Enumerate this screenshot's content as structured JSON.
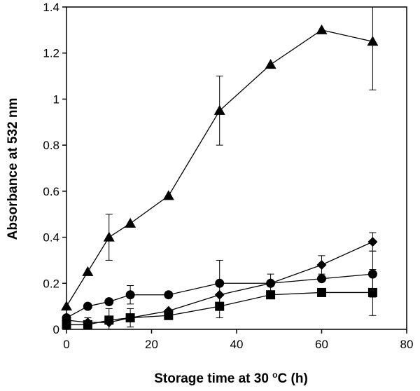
{
  "chart_data": {
    "type": "scatter",
    "title": "",
    "xlabel": {
      "pre": "Storage time at 30 ",
      "sup": "o",
      "post": "C (h)"
    },
    "ylabel": "Absorbance at 532 nm",
    "xlim": [
      0,
      80
    ],
    "ylim": [
      0,
      1.4
    ],
    "xticks": [
      "0",
      "20",
      "40",
      "60",
      "80"
    ],
    "yticks": [
      "0",
      "0.2",
      "0.4",
      "0.6",
      "0.8",
      "1",
      "1.2",
      "1.4"
    ],
    "grid": false,
    "legend": "none",
    "series": [
      {
        "marker": "triangle",
        "x": [
          0,
          5,
          10,
          15,
          24,
          36,
          48,
          60,
          72
        ],
        "y": [
          0.1,
          0.25,
          0.4,
          0.46,
          0.58,
          0.95,
          1.15,
          1.3,
          1.25
        ],
        "err": [
          0,
          0,
          0.1,
          0,
          0,
          0.15,
          0,
          0,
          0.21
        ]
      },
      {
        "marker": "diamond",
        "x": [
          0,
          5,
          10,
          15,
          24,
          36,
          48,
          60,
          72
        ],
        "y": [
          0.04,
          0.03,
          0.03,
          0.05,
          0.08,
          0.15,
          0.2,
          0.28,
          0.38
        ],
        "err": [
          0,
          0,
          0,
          0,
          0,
          0,
          0,
          0.04,
          0.04
        ]
      },
      {
        "marker": "circle",
        "x": [
          0,
          5,
          10,
          15,
          24,
          36,
          48,
          60,
          72
        ],
        "y": [
          0.05,
          0.1,
          0.12,
          0.15,
          0.15,
          0.2,
          0.2,
          0.22,
          0.24
        ],
        "err": [
          0,
          0,
          0,
          0.04,
          0,
          0.1,
          0.04,
          0,
          0.1
        ]
      },
      {
        "marker": "square",
        "x": [
          0,
          5,
          10,
          15,
          24,
          36,
          48,
          60,
          72
        ],
        "y": [
          0.02,
          0.02,
          0.04,
          0.05,
          0.06,
          0.1,
          0.15,
          0.16,
          0.16
        ],
        "err": [
          0,
          0.03,
          0.05,
          0.04,
          0,
          0.05,
          0,
          0,
          0.1
        ]
      }
    ]
  }
}
